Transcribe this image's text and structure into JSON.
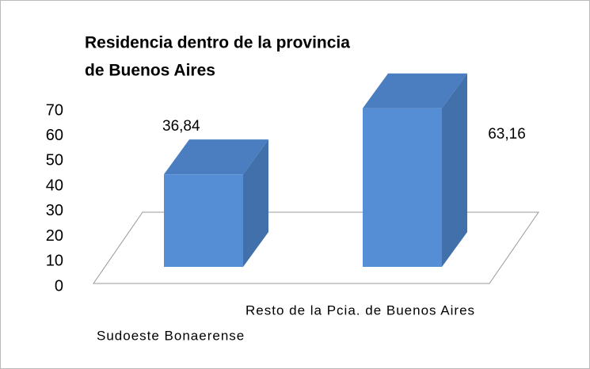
{
  "chart_data": {
    "type": "bar3d",
    "title": [
      "Residencia dentro de la provincia",
      "de Buenos Aires"
    ],
    "categories": [
      "Sudoeste Bonaerense",
      "Resto de la Pcia. de Buenos Aires"
    ],
    "values": [
      36.84,
      63.16
    ],
    "value_labels": [
      "36,84",
      "63,16"
    ],
    "color": "#558ed5",
    "ylim": [
      0,
      70
    ],
    "yticks": [
      0,
      10,
      20,
      30,
      40,
      50,
      60,
      70
    ]
  }
}
